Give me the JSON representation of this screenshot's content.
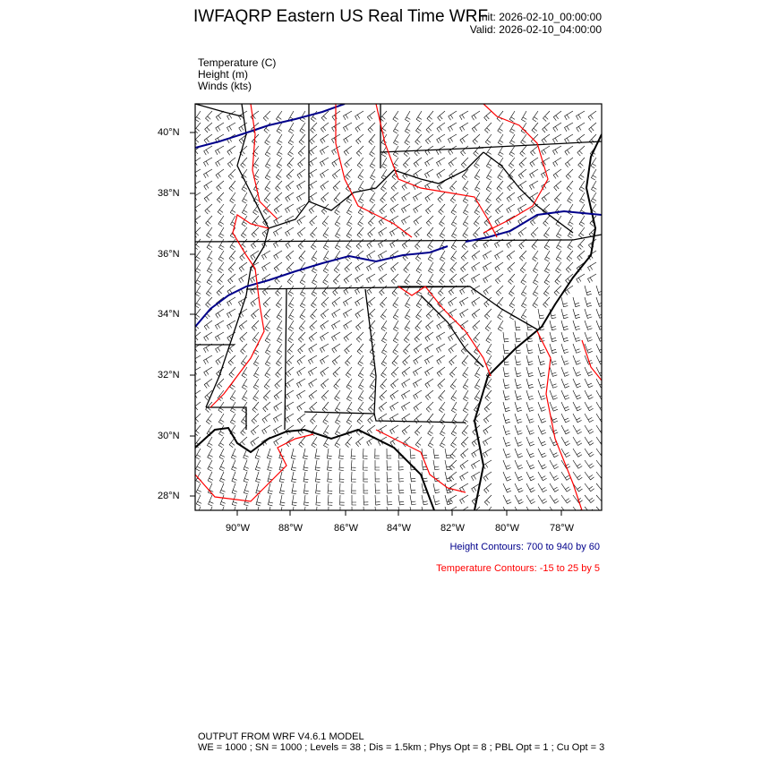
{
  "header": {
    "title": "IWFAQRP Eastern US Real Time WRF",
    "init": "Init: 2026-02-10_00:00:00",
    "valid": "Valid: 2026-02-10_04:00:00"
  },
  "variables": [
    "Temperature   (C)",
    "Height   (m)",
    "Winds   (kts)"
  ],
  "map": {
    "lat_ticks": [
      "40°N",
      "38°N",
      "36°N",
      "34°N",
      "32°N",
      "30°N",
      "28°N"
    ],
    "lon_ticks": [
      "90°W",
      "88°W",
      "86°W",
      "84°W",
      "82°W",
      "80°W",
      "78°W"
    ],
    "colors": {
      "height_contour": "#00008b",
      "temperature_contour": "#ff0000",
      "borders": "#000000",
      "wind_barbs": "#000000"
    }
  },
  "legend": {
    "height": "Height Contours: 700 to 940 by 60",
    "temperature": "Temperature Contours: -15 to 25 by 5"
  },
  "footer": {
    "line1": "OUTPUT FROM WRF V4.6.1 MODEL",
    "line2": "WE = 1000 ; SN = 1000 ; Levels = 38 ; Dis = 1.5km ; Phys Opt = 8 ; PBL Opt = 1 ; Cu Opt = 3"
  }
}
